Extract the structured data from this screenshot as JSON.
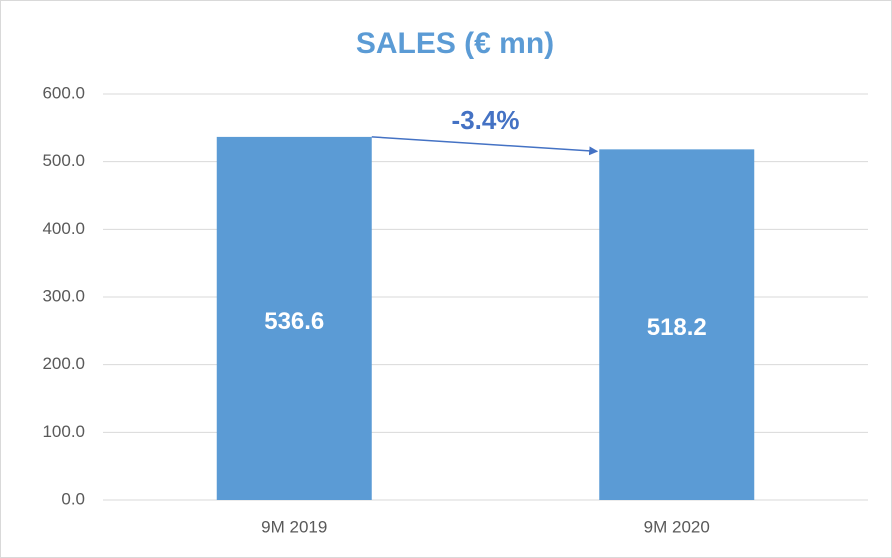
{
  "chart_data": {
    "type": "bar",
    "title": "SALES (€ mn)",
    "categories": [
      "9M 2019",
      "9M 2020"
    ],
    "values": [
      536.6,
      518.2
    ],
    "color": "#5b9bd5",
    "ylim": [
      0,
      600
    ],
    "yticks": [
      {
        "value": 0,
        "label": "0.0"
      },
      {
        "value": 100,
        "label": "100.0"
      },
      {
        "value": 200,
        "label": "200.0"
      },
      {
        "value": 300,
        "label": "300.0"
      },
      {
        "value": 400,
        "label": "400.0"
      },
      {
        "value": 500,
        "label": "500.0"
      },
      {
        "value": 600,
        "label": "600.0"
      }
    ],
    "grid": true,
    "annotation": "-3.4%"
  }
}
